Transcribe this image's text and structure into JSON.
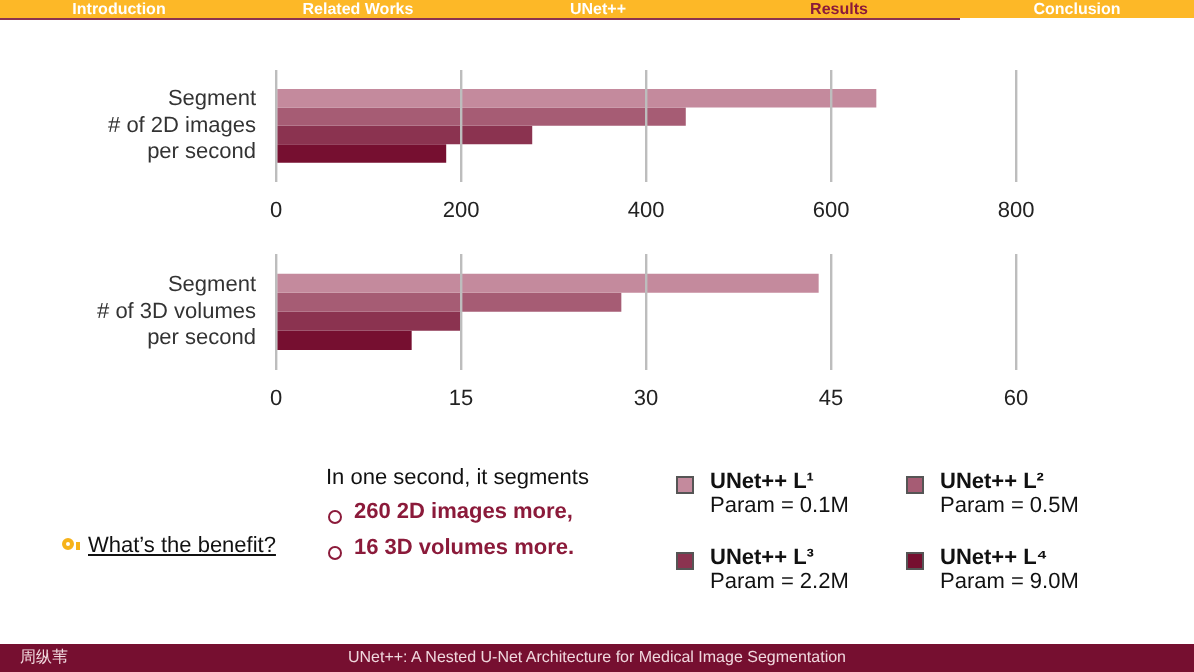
{
  "chart_data": [
    {
      "type": "bar",
      "orientation": "horizontal",
      "categories": [
        "Segment\n# of 2D images\nper second"
      ],
      "series": [
        {
          "color": "#c48a9d",
          "values": [
            649
          ]
        },
        {
          "color": "#a65c74",
          "values": [
            443
          ]
        },
        {
          "color": "#8b3350",
          "values": [
            277
          ]
        },
        {
          "color": "#760f30",
          "values": [
            184
          ]
        }
      ],
      "xlim": [
        0,
        800
      ],
      "xticks": [
        0,
        200,
        400,
        600,
        800
      ],
      "grid": "x",
      "legend": false
    },
    {
      "type": "bar",
      "orientation": "horizontal",
      "categories": [
        "Segment\n# of 3D volumes\nper second"
      ],
      "series": [
        {
          "name": "UNet++ L¹\nParam = 0.1M",
          "color": "#c48a9d",
          "values": [
            44
          ]
        },
        {
          "name": "UNet++ L²\nParam = 0.5M",
          "color": "#a65c74",
          "values": [
            28
          ]
        },
        {
          "name": "UNet++ L³\nParam = 2.2M",
          "color": "#8b3350",
          "values": [
            15
          ]
        },
        {
          "name": "UNet++ L⁴\nParam = 9.0M",
          "color": "#760f30",
          "values": [
            11
          ]
        }
      ],
      "xlim": [
        0,
        60
      ],
      "xticks": [
        0,
        15,
        30,
        45,
        60
      ],
      "grid": "x",
      "legend": "bottom"
    },
    {
      "type": "other",
      "annotations": [
        "Introduction",
        "Related Works",
        "UNet++",
        "Results",
        "Conclusion",
        "What’s the benefit?",
        "In one second, it segments",
        "260 2D images more,",
        "16 3D volumes more.",
        "周纵苇",
        "UNet++: A Nested U-Net Architecture for Medical Image Segmentation"
      ]
    }
  ]
}
